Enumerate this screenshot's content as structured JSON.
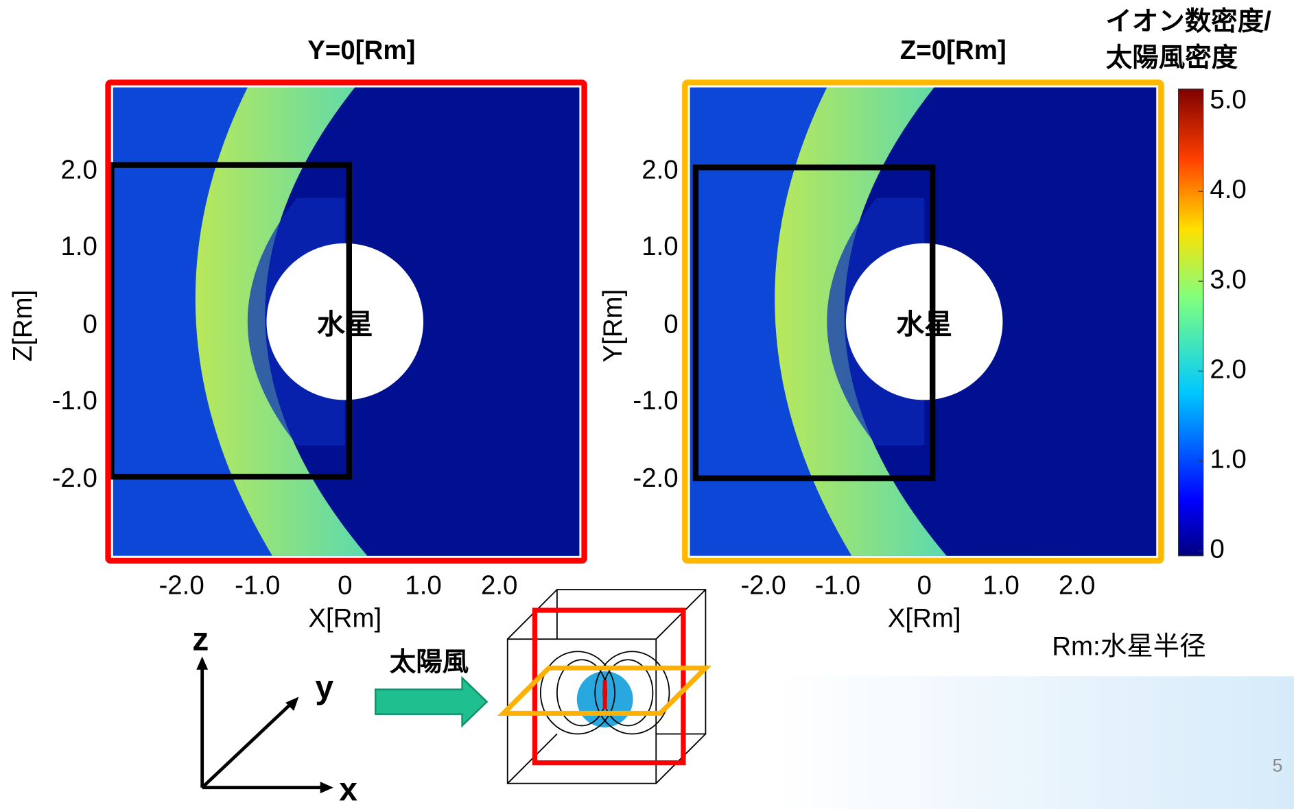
{
  "panels": [
    {
      "title": "Y=0[Rm]",
      "y_label": "Z[Rm]",
      "x_label": "X[Rm]",
      "x_ticks": [
        "-2.0",
        "-1.0",
        "0",
        "1.0",
        "2.0"
      ],
      "y_ticks": [
        "2.0",
        "1.0",
        "0",
        "-1.0",
        "-2.0"
      ],
      "planet_label": "水星"
    },
    {
      "title": "Z=0[Rm]",
      "y_label": "Y[Rm]",
      "x_label": "X[Rm]",
      "x_ticks": [
        "-2.0",
        "-1.0",
        "0",
        "1.0",
        "2.0"
      ],
      "y_ticks": [
        "2.0",
        "1.0",
        "0",
        "-1.0",
        "-2.0"
      ],
      "planet_label": "水星"
    }
  ],
  "colorbar": {
    "title": [
      "イオン数密度/",
      "太陽風密度"
    ],
    "ticks": [
      "5.0",
      "4.0",
      "3.0",
      "2.0",
      "1.0",
      "0"
    ]
  },
  "note": "Rm:水星半径",
  "diagram": {
    "axes": [
      "z",
      "y",
      "x"
    ],
    "arrow_label": "太陽風"
  },
  "page_number": "5"
}
